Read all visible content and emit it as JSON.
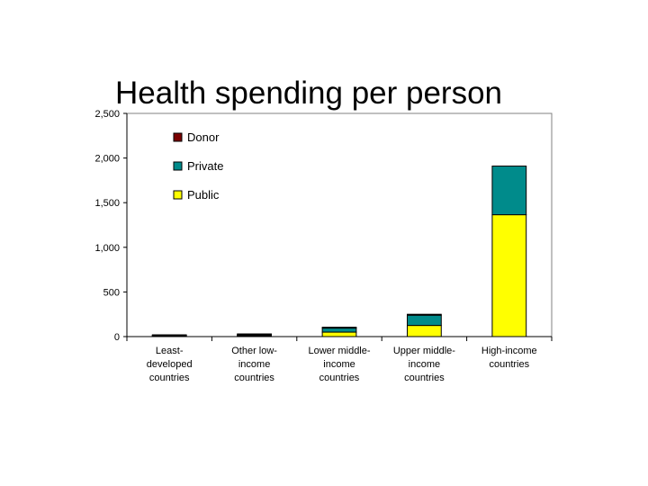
{
  "chart_data": {
    "type": "bar",
    "stacked": true,
    "title": "Health spending per person",
    "xlabel": "",
    "ylabel": "",
    "ylim": [
      0,
      2500
    ],
    "yticks": [
      0,
      500,
      1000,
      1500,
      2000,
      2500
    ],
    "ytick_labels": [
      "0",
      "500",
      "1,000",
      "1,500",
      "2,000",
      "2,500"
    ],
    "grid": false,
    "legend_position": "top-left",
    "categories": [
      [
        "Least-",
        "developed",
        "countries"
      ],
      [
        "Other low-",
        "income",
        "countries"
      ],
      [
        "Lower middle-",
        "income",
        "countries"
      ],
      [
        "Upper middle-",
        "income",
        "countries"
      ],
      [
        "High-income",
        "countries"
      ]
    ],
    "series": [
      {
        "name": "Public",
        "color": "#FFFF00",
        "values": [
          5,
          10,
          50,
          125,
          1365
        ]
      },
      {
        "name": "Private",
        "color": "#008B8B",
        "values": [
          5,
          10,
          45,
          115,
          545
        ]
      },
      {
        "name": "Donor",
        "color": "#7B0000",
        "values": [
          5,
          5,
          2,
          1,
          0
        ]
      }
    ],
    "legend_order": [
      "Donor",
      "Private",
      "Public"
    ]
  }
}
